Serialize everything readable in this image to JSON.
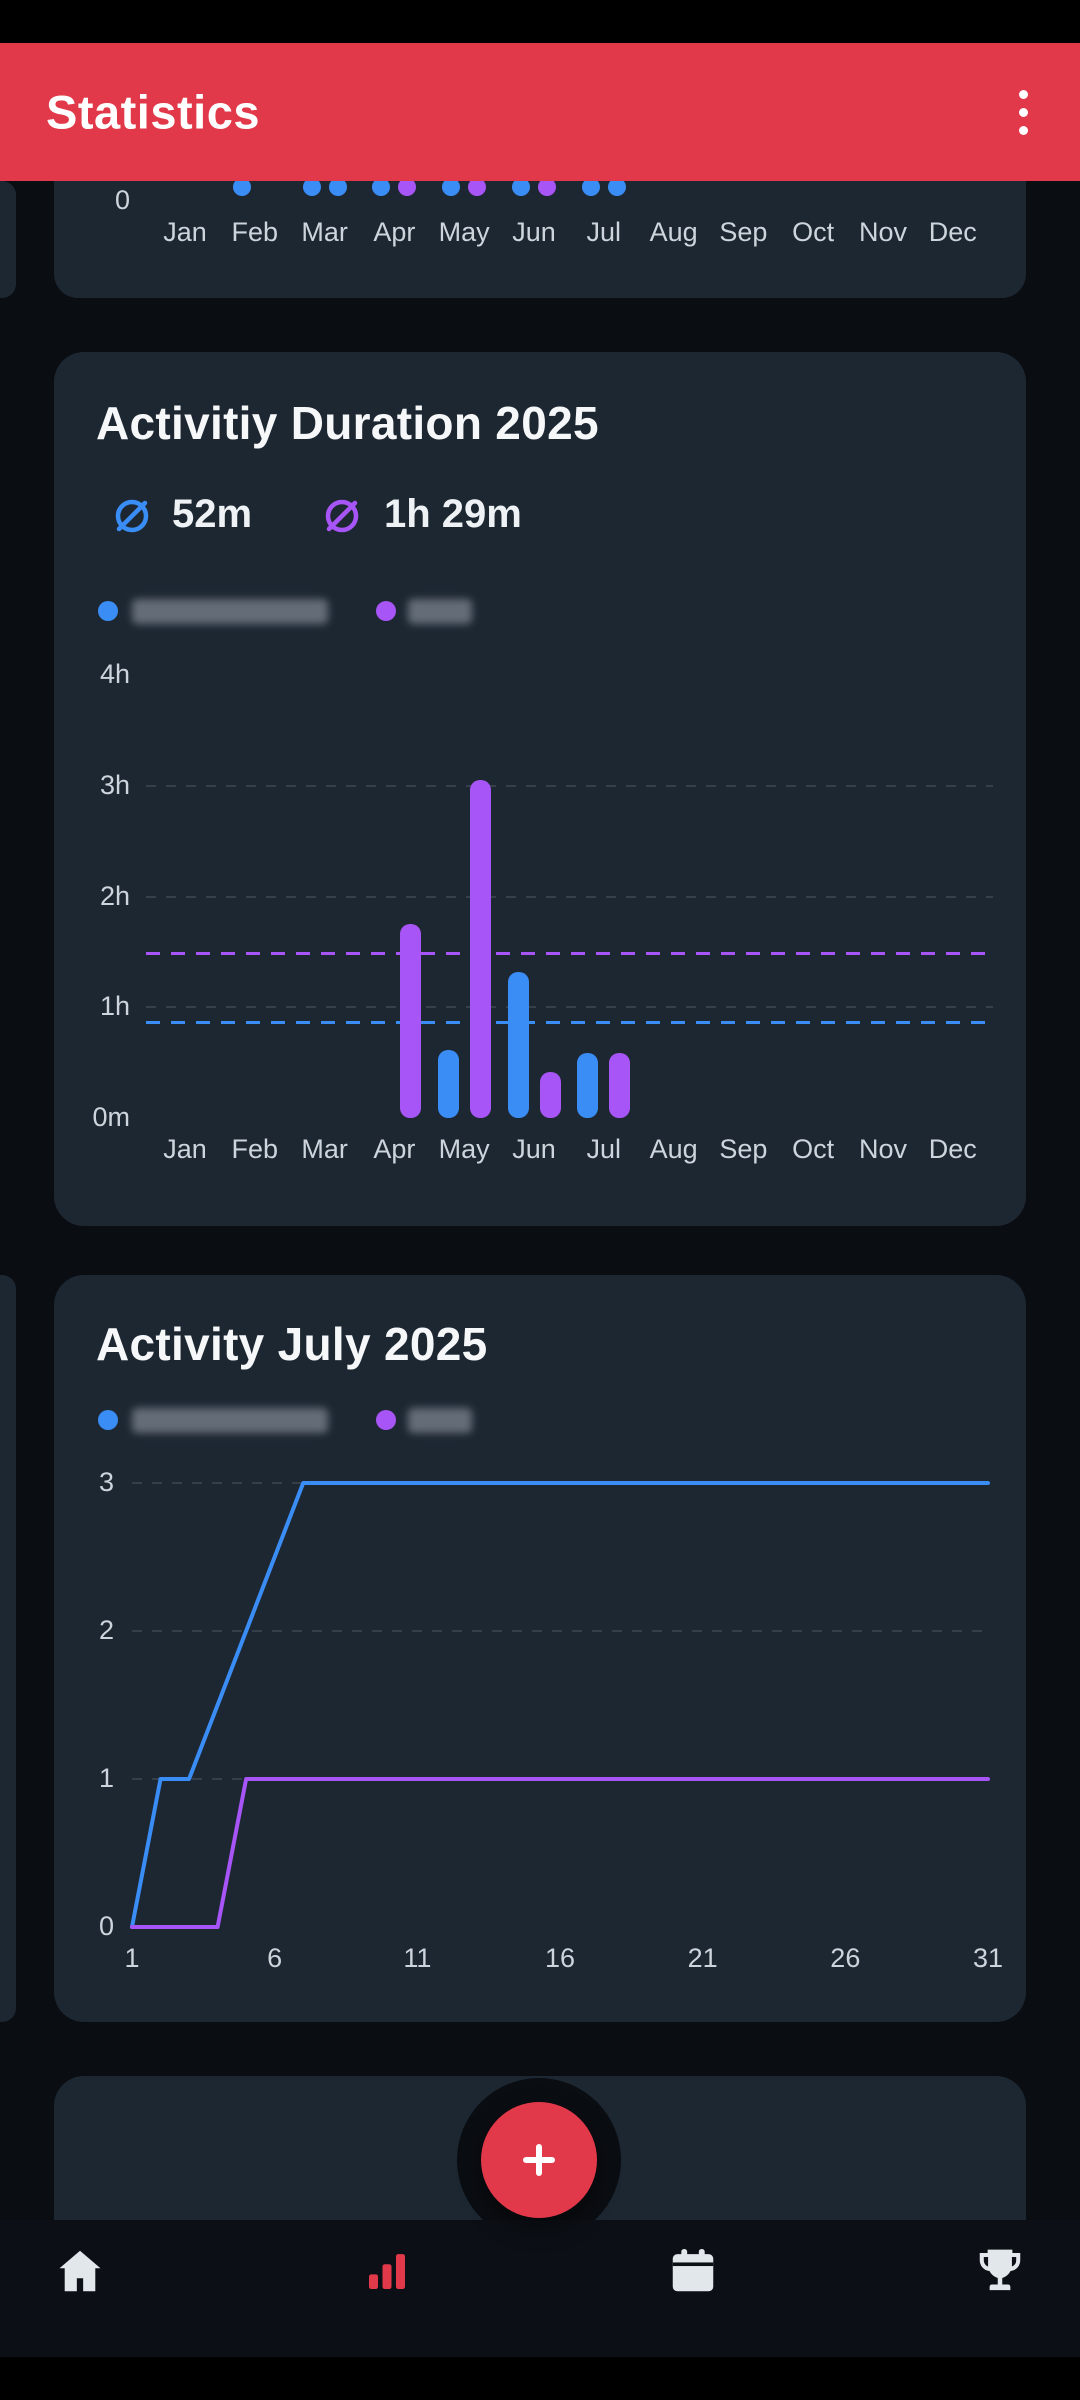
{
  "app_bar": {
    "title": "Statistics"
  },
  "colors": {
    "background": "#0A0D12",
    "card": "#1D2732",
    "accent_red": "#E2394A",
    "blue": "#3B8DF6",
    "purple": "#A855F7",
    "axis_text": "#CDD4DB",
    "grid": "#5A6570",
    "title_text": "#F5F7F9"
  },
  "top_chart_card": {
    "y_tick": "0",
    "months": [
      "Jan",
      "Feb",
      "Mar",
      "Apr",
      "May",
      "Jun",
      "Jul",
      "Aug",
      "Sep",
      "Oct",
      "Nov",
      "Dec"
    ],
    "dots": [
      {
        "month": "Feb",
        "colors": [
          "blue"
        ]
      },
      {
        "month": "Mar",
        "colors": [
          "blue",
          "blue"
        ]
      },
      {
        "month": "Apr",
        "colors": [
          "blue",
          "purple"
        ]
      },
      {
        "month": "May",
        "colors": [
          "blue",
          "purple"
        ]
      },
      {
        "month": "Jun",
        "colors": [
          "blue",
          "purple"
        ]
      },
      {
        "month": "Jul",
        "colors": [
          "blue",
          "blue"
        ]
      }
    ]
  },
  "duration_card": {
    "title": "Activitiy Duration 2025",
    "averages": [
      {
        "label": "52m",
        "color": "blue",
        "minutes": 52
      },
      {
        "label": "1h 29m",
        "color": "purple",
        "minutes": 89
      }
    ],
    "legend": [
      {
        "color": "blue",
        "redacted": true
      },
      {
        "color": "purple",
        "redacted": true
      }
    ],
    "chart_data": {
      "type": "bar",
      "unit": "minutes",
      "categories": [
        "Jan",
        "Feb",
        "Mar",
        "Apr",
        "May",
        "Jun",
        "Jul",
        "Aug",
        "Sep",
        "Oct",
        "Nov",
        "Dec"
      ],
      "series": [
        {
          "name": "series-blue",
          "color": "blue",
          "values": [
            null,
            null,
            null,
            null,
            37,
            79,
            35,
            null,
            null,
            null,
            null,
            null
          ]
        },
        {
          "name": "series-purple",
          "color": "purple",
          "values": [
            null,
            null,
            null,
            105,
            183,
            25,
            35,
            null,
            null,
            null,
            null,
            null
          ]
        }
      ],
      "y_ticks": [
        {
          "label": "0m",
          "minutes": 0
        },
        {
          "label": "1h",
          "minutes": 60
        },
        {
          "label": "2h",
          "minutes": 120
        },
        {
          "label": "3h",
          "minutes": 180
        },
        {
          "label": "4h",
          "minutes": 240
        }
      ],
      "average_lines": [
        {
          "color": "blue",
          "minutes": 52
        },
        {
          "color": "purple",
          "minutes": 89
        }
      ],
      "ylim": [
        0,
        240
      ],
      "grid": true
    }
  },
  "july_card": {
    "title": "Activity July 2025",
    "legend": [
      {
        "color": "blue",
        "redacted": true
      },
      {
        "color": "purple",
        "redacted": true
      }
    ],
    "chart_data": {
      "type": "line",
      "xlim": [
        1,
        31
      ],
      "ylim": [
        0,
        3
      ],
      "x_ticks": [
        1,
        6,
        11,
        16,
        21,
        26,
        31
      ],
      "y_ticks": [
        0,
        1,
        2,
        3
      ],
      "series": [
        {
          "name": "series-blue",
          "color": "blue",
          "points": [
            [
              1,
              0
            ],
            [
              2,
              1
            ],
            [
              3,
              1
            ],
            [
              7,
              3
            ],
            [
              31,
              3
            ]
          ]
        },
        {
          "name": "series-purple",
          "color": "purple",
          "points": [
            [
              1,
              0
            ],
            [
              4,
              0
            ],
            [
              5,
              1
            ],
            [
              31,
              1
            ]
          ]
        }
      ],
      "grid": true
    }
  },
  "fab": {
    "label": "+"
  },
  "bottom_nav": {
    "items": [
      {
        "name": "home",
        "icon": "home-icon",
        "active": false
      },
      {
        "name": "statistics",
        "icon": "bar-chart-icon",
        "active": true
      },
      {
        "name": "calendar",
        "icon": "calendar-icon",
        "active": false
      },
      {
        "name": "trophy",
        "icon": "trophy-icon",
        "active": false
      }
    ]
  }
}
